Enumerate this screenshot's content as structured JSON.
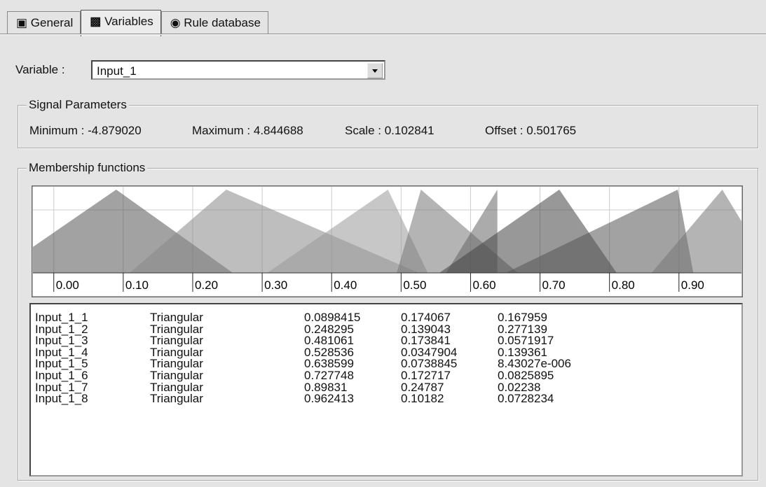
{
  "tabs": [
    "General",
    "Variables",
    "Rule database"
  ],
  "variable": {
    "label": "Variable :",
    "value": "Input_1"
  },
  "signal_parameters": {
    "title": "Signal Parameters",
    "items": [
      {
        "label": "Minimum :",
        "value": "-4.879020"
      },
      {
        "label": "Maximum :",
        "value": "4.844688"
      },
      {
        "label": "Scale :",
        "value": "0.102841"
      },
      {
        "label": "Offset :",
        "value": "0.501765"
      }
    ]
  },
  "membership": {
    "title": "Membership functions",
    "xlim": [
      -0.03,
      0.99
    ],
    "xticks": [
      {
        "value": 0,
        "label": "0.00"
      },
      {
        "value": 0.1,
        "label": "0.10"
      },
      {
        "value": 0.2,
        "label": "0.20"
      },
      {
        "value": 0.3,
        "label": "0.30"
      },
      {
        "value": 0.4,
        "label": "0.40"
      },
      {
        "value": 0.5,
        "label": "0.50"
      },
      {
        "value": 0.6,
        "label": "0.60"
      },
      {
        "value": 0.7,
        "label": "0.70"
      },
      {
        "value": 0.8,
        "label": "0.80"
      },
      {
        "value": 0.9,
        "label": "0.90"
      }
    ],
    "rows": [
      [
        "Input_1_1",
        "Triangular",
        "0.0898415",
        "0.174067",
        "0.167959"
      ],
      [
        "Input_1_2",
        "Triangular",
        "0.248295",
        "0.139043",
        "0.277139"
      ],
      [
        "Input_1_3",
        "Triangular",
        "0.481061",
        "0.173841",
        "0.0571917"
      ],
      [
        "Input_1_4",
        "Triangular",
        "0.528536",
        "0.0347904",
        "0.139361"
      ],
      [
        "Input_1_5",
        "Triangular",
        "0.638599",
        "0.0738845",
        "8.43027e-006"
      ],
      [
        "Input_1_6",
        "Triangular",
        "0.727748",
        "0.172717",
        "0.0825895"
      ],
      [
        "Input_1_7",
        "Triangular",
        "0.89831",
        "0.24787",
        "0.02238"
      ],
      [
        "Input_1_8",
        "Triangular",
        "0.962413",
        "0.10182",
        "0.0728234"
      ]
    ]
  }
}
